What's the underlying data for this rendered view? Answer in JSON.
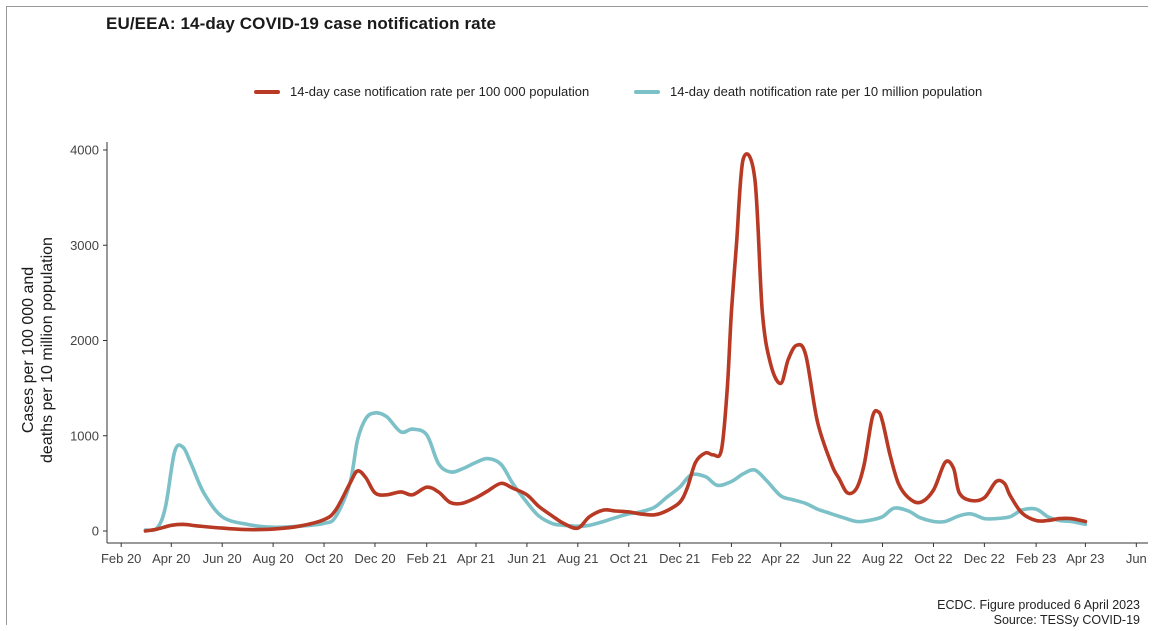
{
  "header": {
    "title": "EU/EEA: 14-day COVID-19 case notification rate"
  },
  "footer": {
    "line1": "ECDC. Figure produced 6 April 2023",
    "line2": "Source: TESSy COVID-19"
  },
  "colors": {
    "cases": "#b83a24",
    "deaths": "#7cc0c8"
  },
  "chart_data": {
    "type": "line",
    "title": "EU/EEA: 14-day COVID-19 case notification rate",
    "ylabel": [
      "Cases per 100 000 and",
      "deaths per 10 million population"
    ],
    "xlabel": "",
    "ylim": [
      0,
      4000
    ],
    "yticks": [
      0,
      1000,
      2000,
      3000,
      4000
    ],
    "xlim": [
      "2020-01-15",
      "2023-06-15"
    ],
    "xticks": [
      "Feb 20",
      "Apr 20",
      "Jun 20",
      "Aug 20",
      "Oct 20",
      "Dec 20",
      "Feb 21",
      "Apr 21",
      "Jun 21",
      "Aug 21",
      "Oct 21",
      "Dec 21",
      "Feb 22",
      "Apr 22",
      "Jun 22",
      "Aug 22",
      "Oct 22",
      "Dec 22",
      "Feb 23",
      "Apr 23",
      "Jun"
    ],
    "xtick_dates": [
      "2020-02-01",
      "2020-04-01",
      "2020-06-01",
      "2020-08-01",
      "2020-10-01",
      "2020-12-01",
      "2021-02-01",
      "2021-04-01",
      "2021-06-01",
      "2021-08-01",
      "2021-10-01",
      "2021-12-01",
      "2022-02-01",
      "2022-04-01",
      "2022-06-01",
      "2022-08-01",
      "2022-10-01",
      "2022-12-01",
      "2023-02-01",
      "2023-04-01",
      "2023-06-01"
    ],
    "grid": false,
    "legend": "top",
    "series": [
      {
        "name": "14-day case notification rate per 100 000 population",
        "color": "#b83a24",
        "x": [
          "2020-03-01",
          "2020-03-15",
          "2020-04-01",
          "2020-04-15",
          "2020-05-01",
          "2020-06-01",
          "2020-07-01",
          "2020-08-01",
          "2020-09-01",
          "2020-10-01",
          "2020-10-15",
          "2020-11-01",
          "2020-11-10",
          "2020-11-20",
          "2020-12-01",
          "2020-12-15",
          "2021-01-01",
          "2021-01-15",
          "2021-02-01",
          "2021-02-15",
          "2021-03-01",
          "2021-03-15",
          "2021-04-01",
          "2021-04-15",
          "2021-05-01",
          "2021-05-15",
          "2021-06-01",
          "2021-06-15",
          "2021-07-01",
          "2021-07-15",
          "2021-08-01",
          "2021-08-15",
          "2021-09-01",
          "2021-09-15",
          "2021-10-01",
          "2021-10-15",
          "2021-11-01",
          "2021-11-15",
          "2021-12-01",
          "2021-12-10",
          "2021-12-20",
          "2022-01-01",
          "2022-01-10",
          "2022-01-20",
          "2022-01-27",
          "2022-02-01",
          "2022-02-07",
          "2022-02-15",
          "2022-03-01",
          "2022-03-10",
          "2022-03-20",
          "2022-04-01",
          "2022-04-10",
          "2022-04-20",
          "2022-05-01",
          "2022-05-15",
          "2022-06-01",
          "2022-06-10",
          "2022-06-20",
          "2022-07-01",
          "2022-07-10",
          "2022-07-20",
          "2022-07-27",
          "2022-08-01",
          "2022-08-10",
          "2022-08-20",
          "2022-09-01",
          "2022-09-15",
          "2022-10-01",
          "2022-10-15",
          "2022-10-25",
          "2022-11-01",
          "2022-11-15",
          "2022-12-01",
          "2022-12-15",
          "2022-12-25",
          "2023-01-01",
          "2023-01-15",
          "2023-02-01",
          "2023-02-15",
          "2023-03-01",
          "2023-03-15",
          "2023-04-01"
        ],
        "values": [
          0,
          20,
          60,
          70,
          55,
          30,
          15,
          20,
          50,
          120,
          220,
          500,
          630,
          560,
          400,
          380,
          410,
          380,
          460,
          410,
          300,
          290,
          350,
          420,
          500,
          450,
          380,
          260,
          160,
          80,
          30,
          150,
          220,
          210,
          200,
          180,
          170,
          210,
          300,
          450,
          720,
          820,
          800,
          850,
          1500,
          2300,
          3000,
          3900,
          3700,
          2300,
          1750,
          1550,
          1800,
          1950,
          1850,
          1150,
          700,
          550,
          400,
          450,
          700,
          1200,
          1250,
          1150,
          800,
          500,
          350,
          300,
          430,
          720,
          660,
          400,
          320,
          350,
          520,
          500,
          370,
          190,
          110,
          110,
          130,
          130,
          100
        ]
      },
      {
        "name": "14-day death notification rate per 10 million population",
        "color": "#7cc0c8",
        "x": [
          "2020-03-01",
          "2020-03-15",
          "2020-03-25",
          "2020-04-05",
          "2020-04-15",
          "2020-04-25",
          "2020-05-10",
          "2020-06-01",
          "2020-07-01",
          "2020-08-01",
          "2020-09-01",
          "2020-10-01",
          "2020-10-15",
          "2020-11-01",
          "2020-11-10",
          "2020-11-20",
          "2020-12-01",
          "2020-12-15",
          "2021-01-01",
          "2021-01-15",
          "2021-02-01",
          "2021-02-15",
          "2021-03-01",
          "2021-03-15",
          "2021-04-01",
          "2021-04-15",
          "2021-05-01",
          "2021-05-15",
          "2021-06-01",
          "2021-06-15",
          "2021-07-01",
          "2021-07-15",
          "2021-08-01",
          "2021-08-15",
          "2021-09-01",
          "2021-09-15",
          "2021-10-01",
          "2021-10-15",
          "2021-11-01",
          "2021-11-15",
          "2021-12-01",
          "2021-12-15",
          "2022-01-01",
          "2022-01-15",
          "2022-02-01",
          "2022-02-15",
          "2022-03-01",
          "2022-03-15",
          "2022-04-01",
          "2022-04-15",
          "2022-05-01",
          "2022-05-15",
          "2022-06-01",
          "2022-06-15",
          "2022-07-01",
          "2022-07-15",
          "2022-08-01",
          "2022-08-15",
          "2022-09-01",
          "2022-09-15",
          "2022-10-01",
          "2022-10-15",
          "2022-11-01",
          "2022-11-15",
          "2022-12-01",
          "2022-12-15",
          "2023-01-01",
          "2023-01-15",
          "2023-02-01",
          "2023-02-15",
          "2023-03-01",
          "2023-03-15",
          "2023-04-01"
        ],
        "values": [
          10,
          30,
          250,
          830,
          880,
          700,
          400,
          150,
          70,
          40,
          50,
          80,
          150,
          500,
          950,
          1180,
          1240,
          1200,
          1040,
          1070,
          1010,
          710,
          620,
          650,
          720,
          760,
          700,
          500,
          300,
          160,
          80,
          60,
          50,
          60,
          100,
          140,
          180,
          200,
          250,
          350,
          460,
          590,
          570,
          480,
          520,
          600,
          640,
          530,
          370,
          330,
          290,
          230,
          180,
          140,
          100,
          110,
          150,
          240,
          210,
          140,
          100,
          100,
          160,
          180,
          130,
          130,
          150,
          220,
          230,
          150,
          110,
          100,
          70
        ]
      }
    ]
  }
}
